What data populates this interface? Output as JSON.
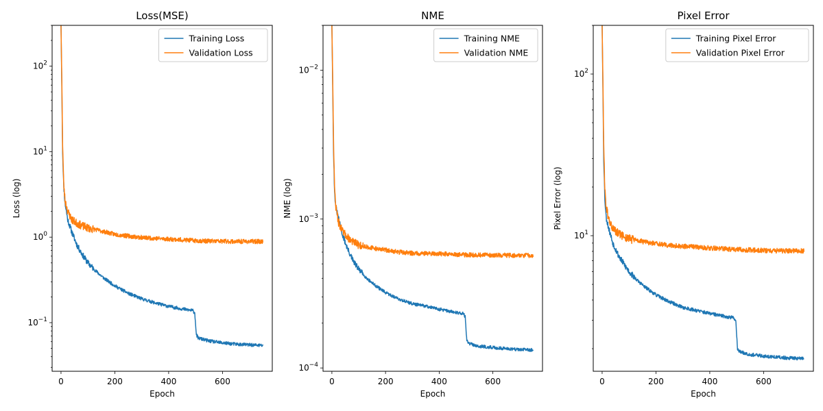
{
  "chart_data": [
    {
      "type": "line",
      "title": "Loss(MSE)",
      "xlabel": "Epoch",
      "ylabel": "Loss (log)",
      "yscale": "log",
      "xlim": [
        -33,
        785
      ],
      "ylim": [
        0.027,
        300
      ],
      "xticks": [
        0,
        200,
        400,
        600
      ],
      "yticks": [
        {
          "value": 0.1,
          "base": "10",
          "exp": "−1"
        },
        {
          "value": 1,
          "base": "10",
          "exp": "0"
        },
        {
          "value": 10,
          "base": "10",
          "exp": "1"
        },
        {
          "value": 100,
          "base": "10",
          "exp": "2"
        }
      ],
      "legend_position": "top-right",
      "series": [
        {
          "name": "Training Loss",
          "color": "#1f77b4",
          "noise": 0.045,
          "seed": 11,
          "points": [
            [
              0,
              300
            ],
            [
              3,
              60
            ],
            [
              6,
              10
            ],
            [
              10,
              4
            ],
            [
              15,
              2.5
            ],
            [
              25,
              1.6
            ],
            [
              40,
              1.15
            ],
            [
              60,
              0.8
            ],
            [
              80,
              0.62
            ],
            [
              100,
              0.5
            ],
            [
              130,
              0.4
            ],
            [
              160,
              0.33
            ],
            [
              200,
              0.27
            ],
            [
              250,
              0.22
            ],
            [
              300,
              0.19
            ],
            [
              350,
              0.17
            ],
            [
              400,
              0.155
            ],
            [
              450,
              0.145
            ],
            [
              490,
              0.138
            ],
            [
              497,
              0.13
            ],
            [
              503,
              0.072
            ],
            [
              510,
              0.066
            ],
            [
              550,
              0.061
            ],
            [
              600,
              0.058
            ],
            [
              650,
              0.056
            ],
            [
              700,
              0.055
            ],
            [
              750,
              0.054
            ]
          ]
        },
        {
          "name": "Validation Loss",
          "color": "#ff7f0e",
          "noise": 0.06,
          "seed": 23,
          "points": [
            [
              0,
              300
            ],
            [
              3,
              70
            ],
            [
              6,
              12
            ],
            [
              10,
              4.2
            ],
            [
              15,
              2.7
            ],
            [
              25,
              2.0
            ],
            [
              40,
              1.6
            ],
            [
              60,
              1.45
            ],
            [
              80,
              1.35
            ],
            [
              100,
              1.28
            ],
            [
              150,
              1.18
            ],
            [
              200,
              1.08
            ],
            [
              250,
              1.03
            ],
            [
              300,
              0.99
            ],
            [
              350,
              0.97
            ],
            [
              400,
              0.95
            ],
            [
              450,
              0.93
            ],
            [
              500,
              0.91
            ],
            [
              550,
              0.9
            ],
            [
              600,
              0.895
            ],
            [
              650,
              0.89
            ],
            [
              700,
              0.89
            ],
            [
              750,
              0.89
            ]
          ]
        }
      ]
    },
    {
      "type": "line",
      "title": "NME",
      "xlabel": "Epoch",
      "ylabel": "NME (log)",
      "yscale": "log",
      "xlim": [
        -33,
        785
      ],
      "ylim": [
        9.5e-05,
        0.02
      ],
      "xticks": [
        0,
        200,
        400,
        600
      ],
      "yticks": [
        {
          "value": 0.0001,
          "base": "10",
          "exp": "−4"
        },
        {
          "value": 0.001,
          "base": "10",
          "exp": "−3"
        },
        {
          "value": 0.01,
          "base": "10",
          "exp": "−2"
        }
      ],
      "legend_position": "top-right",
      "series": [
        {
          "name": "Training NME",
          "color": "#1f77b4",
          "noise": 0.025,
          "seed": 31,
          "points": [
            [
              0,
              0.02
            ],
            [
              3,
              0.008
            ],
            [
              6,
              0.003
            ],
            [
              10,
              0.0015
            ],
            [
              15,
              0.0012
            ],
            [
              25,
              0.001
            ],
            [
              40,
              0.00078
            ],
            [
              60,
              0.00062
            ],
            [
              80,
              0.00052
            ],
            [
              100,
              0.00046
            ],
            [
              130,
              0.0004
            ],
            [
              160,
              0.00036
            ],
            [
              200,
              0.00032
            ],
            [
              250,
              0.00029
            ],
            [
              300,
              0.00027
            ],
            [
              350,
              0.00026
            ],
            [
              400,
              0.000248
            ],
            [
              450,
              0.000238
            ],
            [
              490,
              0.000232
            ],
            [
              497,
              0.00022
            ],
            [
              503,
              0.000152
            ],
            [
              510,
              0.000146
            ],
            [
              550,
              0.00014
            ],
            [
              600,
              0.000137
            ],
            [
              650,
              0.000135
            ],
            [
              700,
              0.000133
            ],
            [
              750,
              0.000132
            ]
          ]
        },
        {
          "name": "Validation NME",
          "color": "#ff7f0e",
          "noise": 0.035,
          "seed": 47,
          "points": [
            [
              0,
              0.02
            ],
            [
              3,
              0.009
            ],
            [
              6,
              0.0035
            ],
            [
              10,
              0.0016
            ],
            [
              15,
              0.0012
            ],
            [
              25,
              0.00095
            ],
            [
              40,
              0.00082
            ],
            [
              60,
              0.00075
            ],
            [
              80,
              0.0007
            ],
            [
              100,
              0.00067
            ],
            [
              150,
              0.00064
            ],
            [
              200,
              0.00062
            ],
            [
              250,
              0.0006
            ],
            [
              300,
              0.00059
            ],
            [
              400,
              0.000585
            ],
            [
              500,
              0.000575
            ],
            [
              600,
              0.000572
            ],
            [
              700,
              0.00057
            ],
            [
              750,
              0.00057
            ]
          ]
        }
      ]
    },
    {
      "type": "line",
      "title": "Pixel Error",
      "xlabel": "Epoch",
      "ylabel": "Pixel Error (log)",
      "yscale": "log",
      "xlim": [
        -33,
        785
      ],
      "ylim": [
        1.45,
        200
      ],
      "xticks": [
        0,
        200,
        400,
        600
      ],
      "yticks": [
        {
          "value": 10,
          "base": "10",
          "exp": "1"
        },
        {
          "value": 100,
          "base": "10",
          "exp": "2"
        }
      ],
      "legend_position": "top-right",
      "series": [
        {
          "name": "Training Pixel Error",
          "color": "#1f77b4",
          "noise": 0.025,
          "seed": 53,
          "points": [
            [
              0,
              200
            ],
            [
              3,
              80
            ],
            [
              6,
              30
            ],
            [
              10,
              17
            ],
            [
              15,
              13
            ],
            [
              25,
              11
            ],
            [
              40,
              9
            ],
            [
              60,
              7.6
            ],
            [
              80,
              6.7
            ],
            [
              100,
              6.0
            ],
            [
              130,
              5.3
            ],
            [
              160,
              4.8
            ],
            [
              200,
              4.3
            ],
            [
              250,
              3.9
            ],
            [
              300,
              3.6
            ],
            [
              350,
              3.45
            ],
            [
              400,
              3.3
            ],
            [
              450,
              3.18
            ],
            [
              490,
              3.1
            ],
            [
              497,
              2.95
            ],
            [
              503,
              2.0
            ],
            [
              510,
              1.92
            ],
            [
              550,
              1.84
            ],
            [
              600,
              1.8
            ],
            [
              650,
              1.77
            ],
            [
              700,
              1.75
            ],
            [
              750,
              1.74
            ]
          ]
        },
        {
          "name": "Validation Pixel Error",
          "color": "#ff7f0e",
          "noise": 0.035,
          "seed": 61,
          "points": [
            [
              0,
              200
            ],
            [
              3,
              90
            ],
            [
              6,
              35
            ],
            [
              10,
              20
            ],
            [
              15,
              15
            ],
            [
              25,
              12.5
            ],
            [
              40,
              11
            ],
            [
              60,
              10.3
            ],
            [
              80,
              9.9
            ],
            [
              100,
              9.6
            ],
            [
              150,
              9.2
            ],
            [
              200,
              8.9
            ],
            [
              250,
              8.7
            ],
            [
              300,
              8.6
            ],
            [
              400,
              8.4
            ],
            [
              500,
              8.2
            ],
            [
              600,
              8.1
            ],
            [
              700,
              8.05
            ],
            [
              750,
              8.05
            ]
          ]
        }
      ]
    }
  ]
}
